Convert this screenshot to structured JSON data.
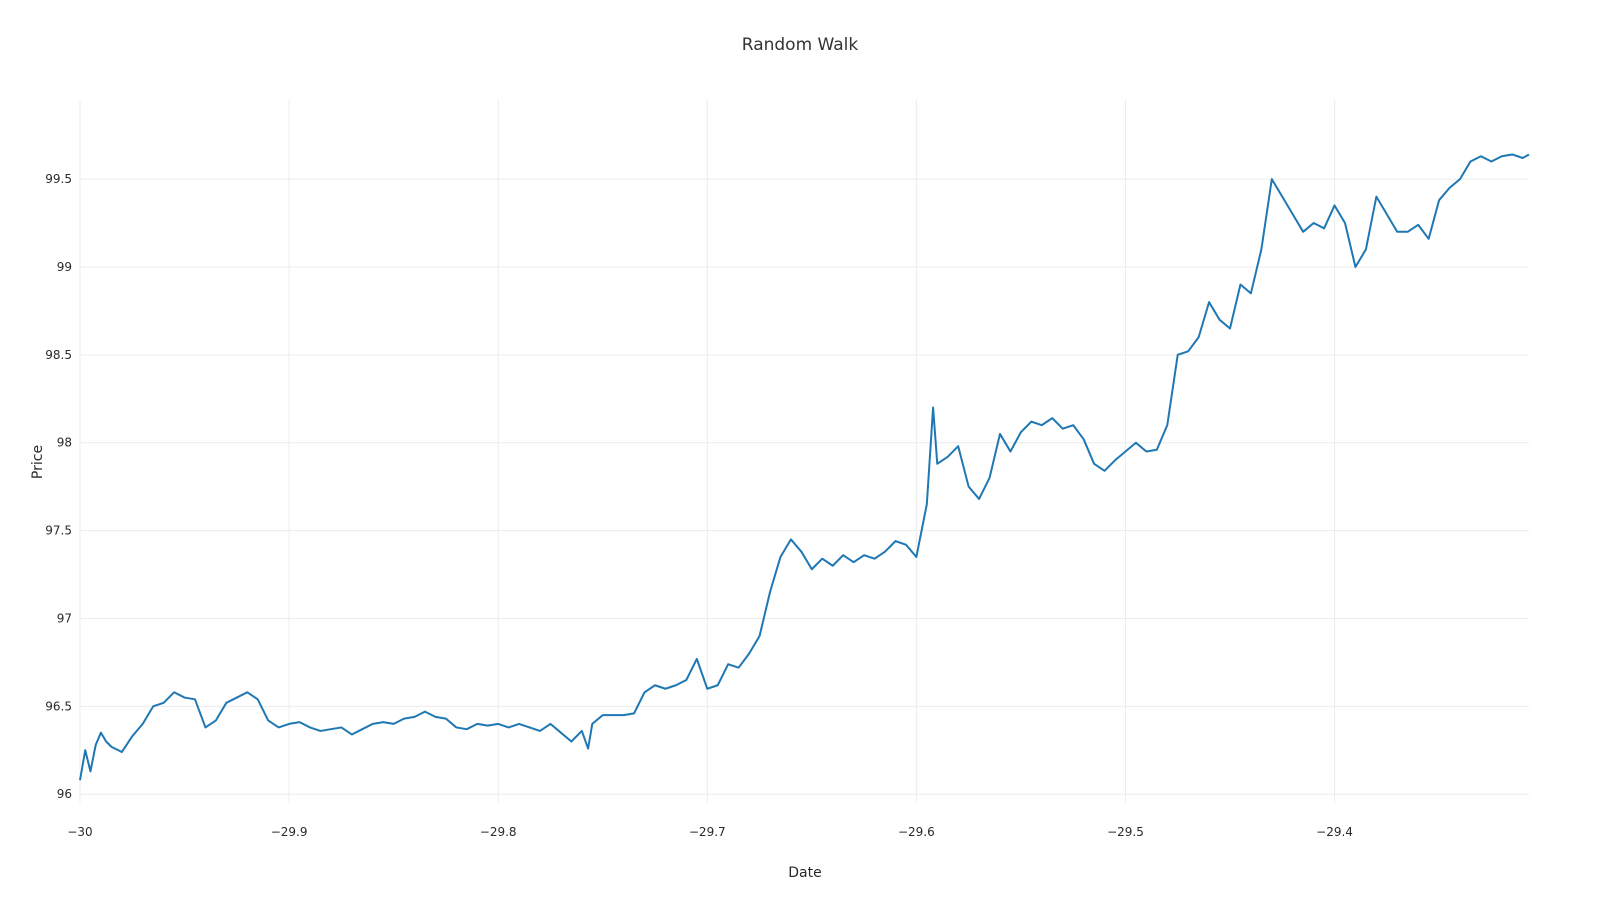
{
  "chart_data": {
    "type": "line",
    "title": "Random Walk",
    "xlabel": "Date",
    "ylabel": "Price",
    "xlim": [
      -30,
      -29.307
    ],
    "ylim": [
      95.95,
      99.95
    ],
    "x_ticks": [
      -30,
      -29.9,
      -29.8,
      -29.7,
      -29.6,
      -29.5,
      -29.4
    ],
    "x_tick_labels": [
      "−30",
      "−29.9",
      "−29.8",
      "−29.7",
      "−29.6",
      "−29.5",
      "−29.4"
    ],
    "y_ticks": [
      96,
      96.5,
      97,
      97.5,
      98,
      98.5,
      99,
      99.5
    ],
    "y_tick_labels": [
      "96",
      "96.5",
      "97",
      "97.5",
      "98",
      "98.5",
      "99",
      "99.5"
    ],
    "grid": true,
    "legend": "none",
    "colors": {
      "line": "#1f77b4",
      "grid": "#ececec",
      "text": "#2a2a2a"
    },
    "series": [
      {
        "x": [
          -30,
          -29.9975,
          -29.995,
          -29.9925,
          -29.99,
          -29.9875,
          -29.985,
          -29.98,
          -29.975,
          -29.97,
          -29.965,
          -29.96,
          -29.955,
          -29.95,
          -29.945,
          -29.94,
          -29.935,
          -29.93,
          -29.925,
          -29.92,
          -29.915,
          -29.91,
          -29.905,
          -29.9,
          -29.895,
          -29.89,
          -29.885,
          -29.88,
          -29.875,
          -29.87,
          -29.865,
          -29.86,
          -29.855,
          -29.85,
          -29.845,
          -29.84,
          -29.835,
          -29.83,
          -29.825,
          -29.82,
          -29.815,
          -29.81,
          -29.805,
          -29.8,
          -29.795,
          -29.79,
          -29.785,
          -29.78,
          -29.775,
          -29.77,
          -29.765,
          -29.76,
          -29.757,
          -29.755,
          -29.75,
          -29.745,
          -29.74,
          -29.735,
          -29.73,
          -29.725,
          -29.72,
          -29.715,
          -29.71,
          -29.705,
          -29.7,
          -29.695,
          -29.69,
          -29.685,
          -29.68,
          -29.675,
          -29.67,
          -29.665,
          -29.66,
          -29.655,
          -29.65,
          -29.645,
          -29.64,
          -29.635,
          -29.63,
          -29.625,
          -29.62,
          -29.615,
          -29.61,
          -29.605,
          -29.6,
          -29.595,
          -29.592,
          -29.59,
          -29.585,
          -29.58,
          -29.575,
          -29.57,
          -29.565,
          -29.56,
          -29.555,
          -29.55,
          -29.545,
          -29.54,
          -29.535,
          -29.53,
          -29.525,
          -29.52,
          -29.515,
          -29.51,
          -29.505,
          -29.5,
          -29.495,
          -29.49,
          -29.485,
          -29.48,
          -29.475,
          -29.47,
          -29.465,
          -29.46,
          -29.455,
          -29.45,
          -29.445,
          -29.44,
          -29.435,
          -29.43,
          -29.425,
          -29.42,
          -29.415,
          -29.41,
          -29.405,
          -29.4,
          -29.395,
          -29.39,
          -29.385,
          -29.38,
          -29.375,
          -29.37,
          -29.365,
          -29.36,
          -29.355,
          -29.35,
          -29.345,
          -29.34,
          -29.335,
          -29.33,
          -29.325,
          -29.32,
          -29.315,
          -29.31,
          -29.307
        ],
        "y": [
          96.08,
          96.25,
          96.13,
          96.28,
          96.35,
          96.3,
          96.27,
          96.24,
          96.33,
          96.4,
          96.5,
          96.52,
          96.58,
          96.55,
          96.54,
          96.38,
          96.42,
          96.52,
          96.55,
          96.58,
          96.54,
          96.42,
          96.38,
          96.4,
          96.41,
          96.38,
          96.36,
          96.37,
          96.38,
          96.34,
          96.37,
          96.4,
          96.41,
          96.4,
          96.43,
          96.44,
          96.47,
          96.44,
          96.43,
          96.38,
          96.37,
          96.4,
          96.39,
          96.4,
          96.38,
          96.4,
          96.38,
          96.36,
          96.4,
          96.35,
          96.3,
          96.36,
          96.26,
          96.4,
          96.45,
          96.45,
          96.45,
          96.46,
          96.58,
          96.62,
          96.6,
          96.62,
          96.65,
          96.77,
          96.6,
          96.62,
          96.74,
          96.72,
          96.8,
          96.9,
          97.15,
          97.35,
          97.45,
          97.38,
          97.28,
          97.34,
          97.3,
          97.36,
          97.32,
          97.36,
          97.34,
          97.38,
          97.44,
          97.42,
          97.35,
          97.65,
          98.2,
          97.88,
          97.92,
          97.98,
          97.75,
          97.68,
          97.8,
          98.05,
          97.95,
          98.06,
          98.12,
          98.1,
          98.14,
          98.08,
          98.1,
          98.02,
          97.88,
          97.84,
          97.9,
          97.95,
          98.0,
          97.95,
          97.96,
          98.1,
          98.5,
          98.52,
          98.6,
          98.8,
          98.7,
          98.65,
          98.9,
          98.85,
          99.1,
          99.5,
          99.4,
          99.3,
          99.2,
          99.25,
          99.22,
          99.35,
          99.25,
          99.0,
          99.1,
          99.4,
          99.3,
          99.2,
          99.2,
          99.24,
          99.16,
          99.38,
          99.45,
          99.5,
          99.6,
          99.63,
          99.6,
          99.63,
          99.64,
          99.62,
          99.64
        ]
      }
    ]
  }
}
